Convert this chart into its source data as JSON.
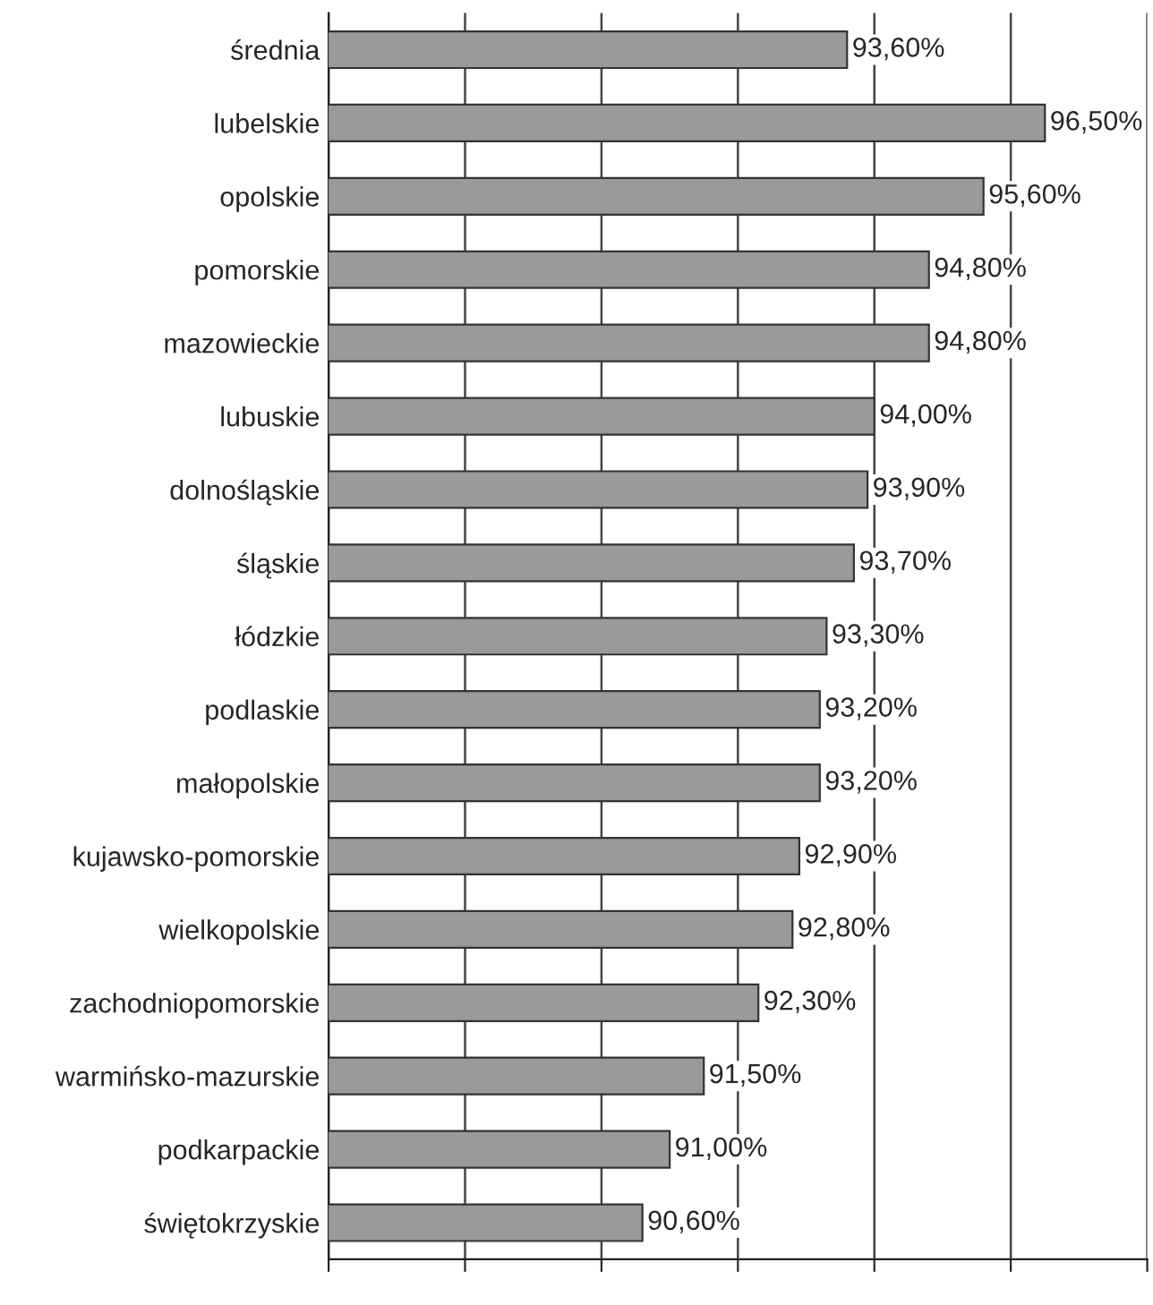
{
  "chart_data": {
    "type": "bar",
    "orientation": "horizontal",
    "categories": [
      "średnia",
      "lubelskie",
      "opolskie",
      "pomorskie",
      "mazowieckie",
      "lubuskie",
      "dolnośląskie",
      "śląskie",
      "łódzkie",
      "podlaskie",
      "małopolskie",
      "kujawsko-pomorskie",
      "wielkopolskie",
      "zachodniopomorskie",
      "warmińsko-mazurskie",
      "podkarpackie",
      "świętokrzyskie"
    ],
    "values": [
      93.6,
      96.5,
      95.6,
      94.8,
      94.8,
      94.0,
      93.9,
      93.7,
      93.3,
      93.2,
      93.2,
      92.9,
      92.8,
      92.3,
      91.5,
      91.0,
      90.6
    ],
    "value_labels": [
      "93,60%",
      "96,50%",
      "95,60%",
      "94,80%",
      "94,80%",
      "94,00%",
      "93,90%",
      "93,70%",
      "93,30%",
      "93,20%",
      "93,20%",
      "92,90%",
      "92,80%",
      "92,30%",
      "91,50%",
      "91,00%",
      "90,60%"
    ],
    "color": "#9a9a9a",
    "xlim": [
      86,
      98
    ],
    "xticks": [
      {
        "value": 86,
        "label": null
      },
      {
        "value": 88,
        "label": null
      },
      {
        "value": 90,
        "label": null
      },
      {
        "value": 92,
        "label": null
      },
      {
        "value": 94,
        "label": null
      },
      {
        "value": 96,
        "label": null
      },
      {
        "value": 98,
        "label": null
      }
    ],
    "tick_labels": "y",
    "grid": "x",
    "legend": false
  }
}
